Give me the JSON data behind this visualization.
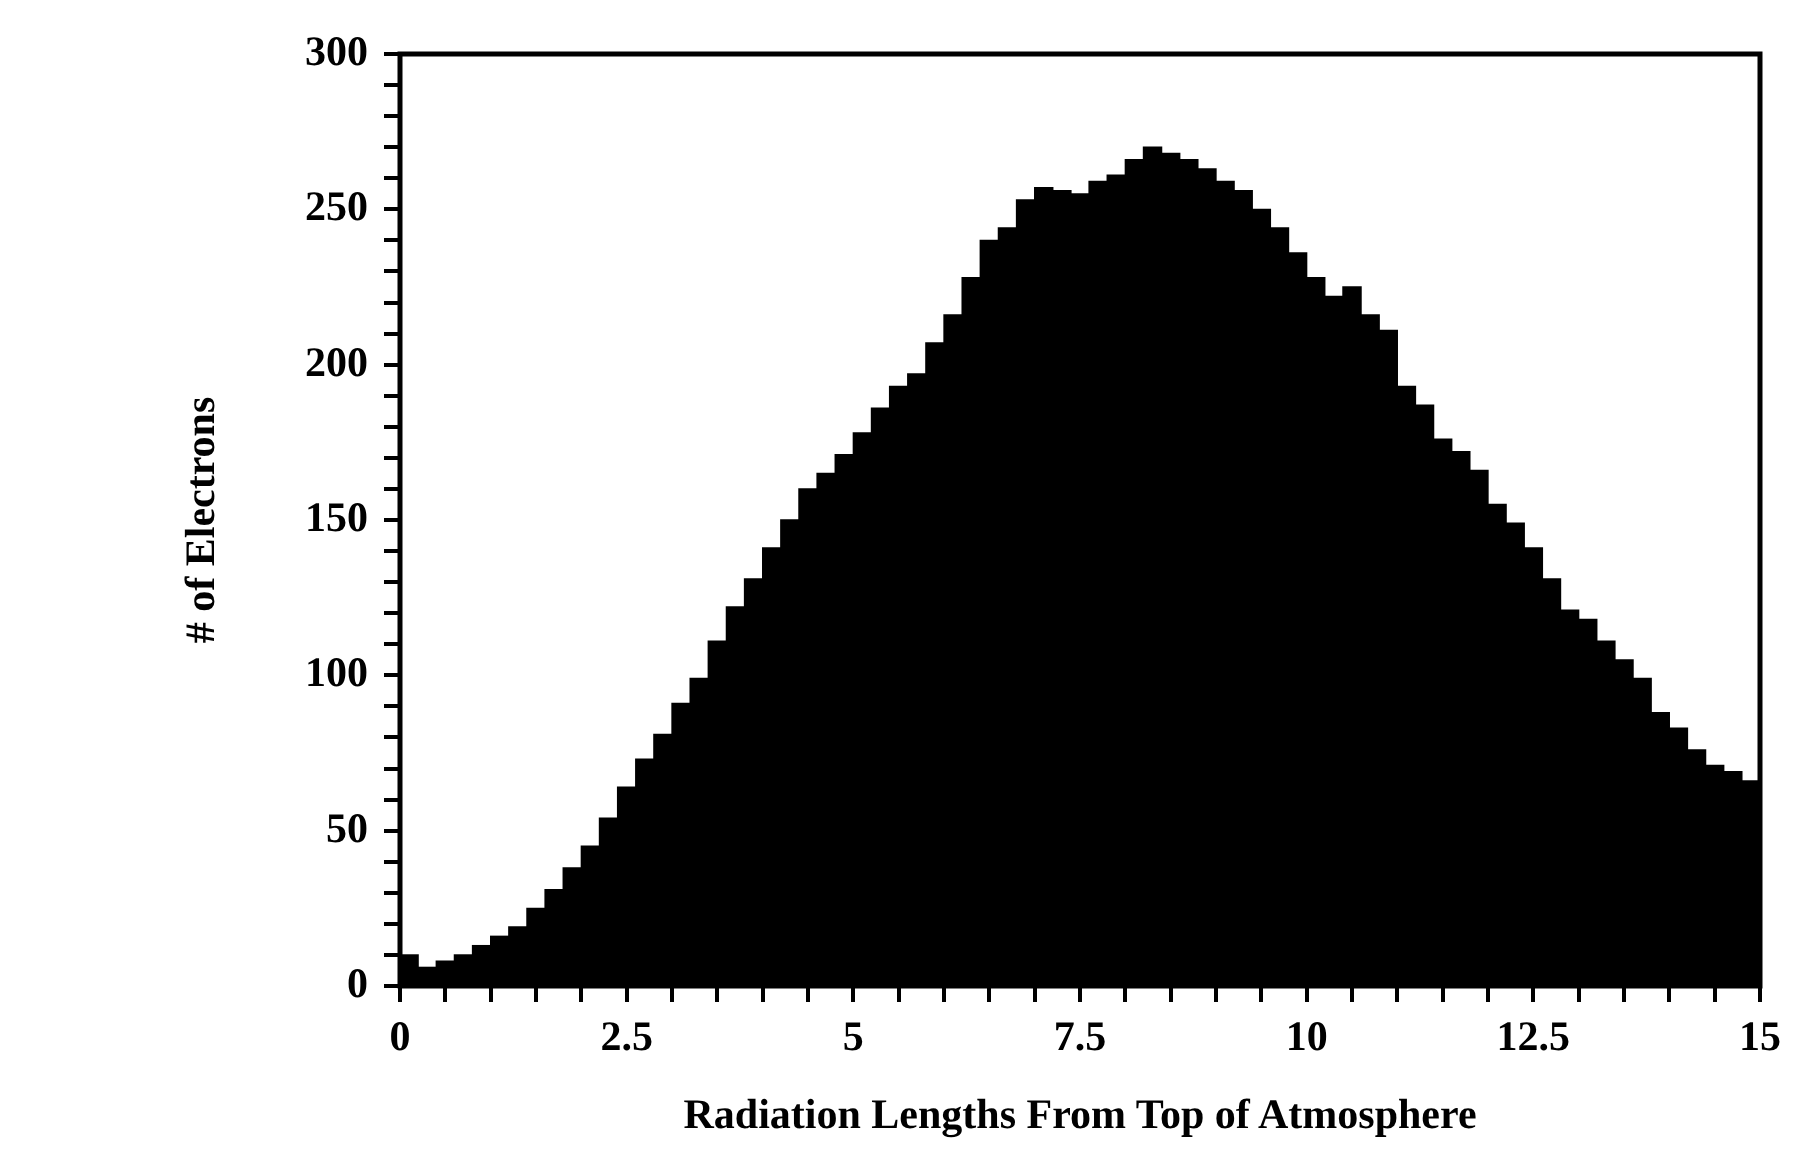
{
  "chart_data": {
    "type": "histogram",
    "xlabel": "Radiation Lengths From Top of Atmosphere",
    "ylabel": "# of Electrons",
    "color": "#000000",
    "grid": false,
    "bins": [
      0,
      0.2,
      0.4,
      0.6,
      0.8,
      1,
      1.2,
      1.4,
      1.6,
      1.8,
      2,
      2.2,
      2.4,
      2.6,
      2.8,
      3,
      3.2,
      3.4,
      3.6,
      3.8,
      4,
      4.2,
      4.4,
      4.6,
      4.8,
      5,
      5.2,
      5.4,
      5.6,
      5.8,
      6,
      6.2,
      6.4,
      6.6,
      6.8,
      7,
      7.2,
      7.4,
      7.6,
      7.8,
      8,
      8.2,
      8.4,
      8.6,
      8.8,
      9,
      9.2,
      9.4,
      9.6,
      9.8,
      10,
      10.2,
      10.4,
      10.6,
      10.8,
      11,
      11.2,
      11.4,
      11.6,
      11.8,
      12,
      12.2,
      12.4,
      12.6,
      12.8,
      13,
      13.2,
      13.4,
      13.6,
      13.8,
      14,
      14.2,
      14.4,
      14.6,
      14.8,
      15
    ],
    "values": [
      10,
      6,
      8,
      10,
      13,
      16,
      19,
      25,
      31,
      38,
      45,
      54,
      64,
      73,
      81,
      91,
      99,
      111,
      122,
      131,
      141,
      150,
      160,
      165,
      171,
      178,
      186,
      193,
      197,
      207,
      216,
      228,
      240,
      244,
      253,
      257,
      256,
      255,
      259,
      261,
      266,
      270,
      268,
      266,
      263,
      259,
      256,
      250,
      244,
      236,
      228,
      222,
      225,
      216,
      211,
      193,
      187,
      176,
      172,
      166,
      155,
      149,
      141,
      131,
      121,
      118,
      111,
      105,
      99,
      88,
      83,
      76,
      71,
      69,
      66
    ],
    "xlim": [
      0,
      15
    ],
    "ylim": [
      0,
      300
    ],
    "xticks": [
      0,
      {
        "value": 0.5,
        "label": null
      },
      {
        "value": 1,
        "label": null
      },
      {
        "value": 1.5,
        "label": null
      },
      {
        "value": 2,
        "label": null
      },
      2.5,
      {
        "value": 3,
        "label": null
      },
      {
        "value": 3.5,
        "label": null
      },
      {
        "value": 4,
        "label": null
      },
      {
        "value": 4.5,
        "label": null
      },
      5,
      {
        "value": 5.5,
        "label": null
      },
      {
        "value": 6,
        "label": null
      },
      {
        "value": 6.5,
        "label": null
      },
      {
        "value": 7,
        "label": null
      },
      7.5,
      {
        "value": 8,
        "label": null
      },
      {
        "value": 8.5,
        "label": null
      },
      {
        "value": 9,
        "label": null
      },
      {
        "value": 9.5,
        "label": null
      },
      10,
      {
        "value": 10.5,
        "label": null
      },
      {
        "value": 11,
        "label": null
      },
      {
        "value": 11.5,
        "label": null
      },
      {
        "value": 12,
        "label": null
      },
      12.5,
      {
        "value": 13,
        "label": null
      },
      {
        "value": 13.5,
        "label": null
      },
      {
        "value": 14,
        "label": null
      },
      {
        "value": 14.5,
        "label": null
      },
      15
    ],
    "yticks": [
      0,
      {
        "value": 10,
        "label": null
      },
      {
        "value": 20,
        "label": null
      },
      {
        "value": 30,
        "label": null
      },
      {
        "value": 40,
        "label": null
      },
      50,
      {
        "value": 60,
        "label": null
      },
      {
        "value": 70,
        "label": null
      },
      {
        "value": 80,
        "label": null
      },
      {
        "value": 90,
        "label": null
      },
      100,
      {
        "value": 110,
        "label": null
      },
      {
        "value": 120,
        "label": null
      },
      {
        "value": 130,
        "label": null
      },
      {
        "value": 140,
        "label": null
      },
      150,
      {
        "value": 160,
        "label": null
      },
      {
        "value": 170,
        "label": null
      },
      {
        "value": 180,
        "label": null
      },
      {
        "value": 190,
        "label": null
      },
      200,
      {
        "value": 210,
        "label": null
      },
      {
        "value": 220,
        "label": null
      },
      {
        "value": 230,
        "label": null
      },
      {
        "value": 240,
        "label": null
      },
      250,
      {
        "value": 260,
        "label": null
      },
      {
        "value": 270,
        "label": null
      },
      {
        "value": 280,
        "label": null
      },
      {
        "value": 290,
        "label": null
      },
      300
    ]
  }
}
